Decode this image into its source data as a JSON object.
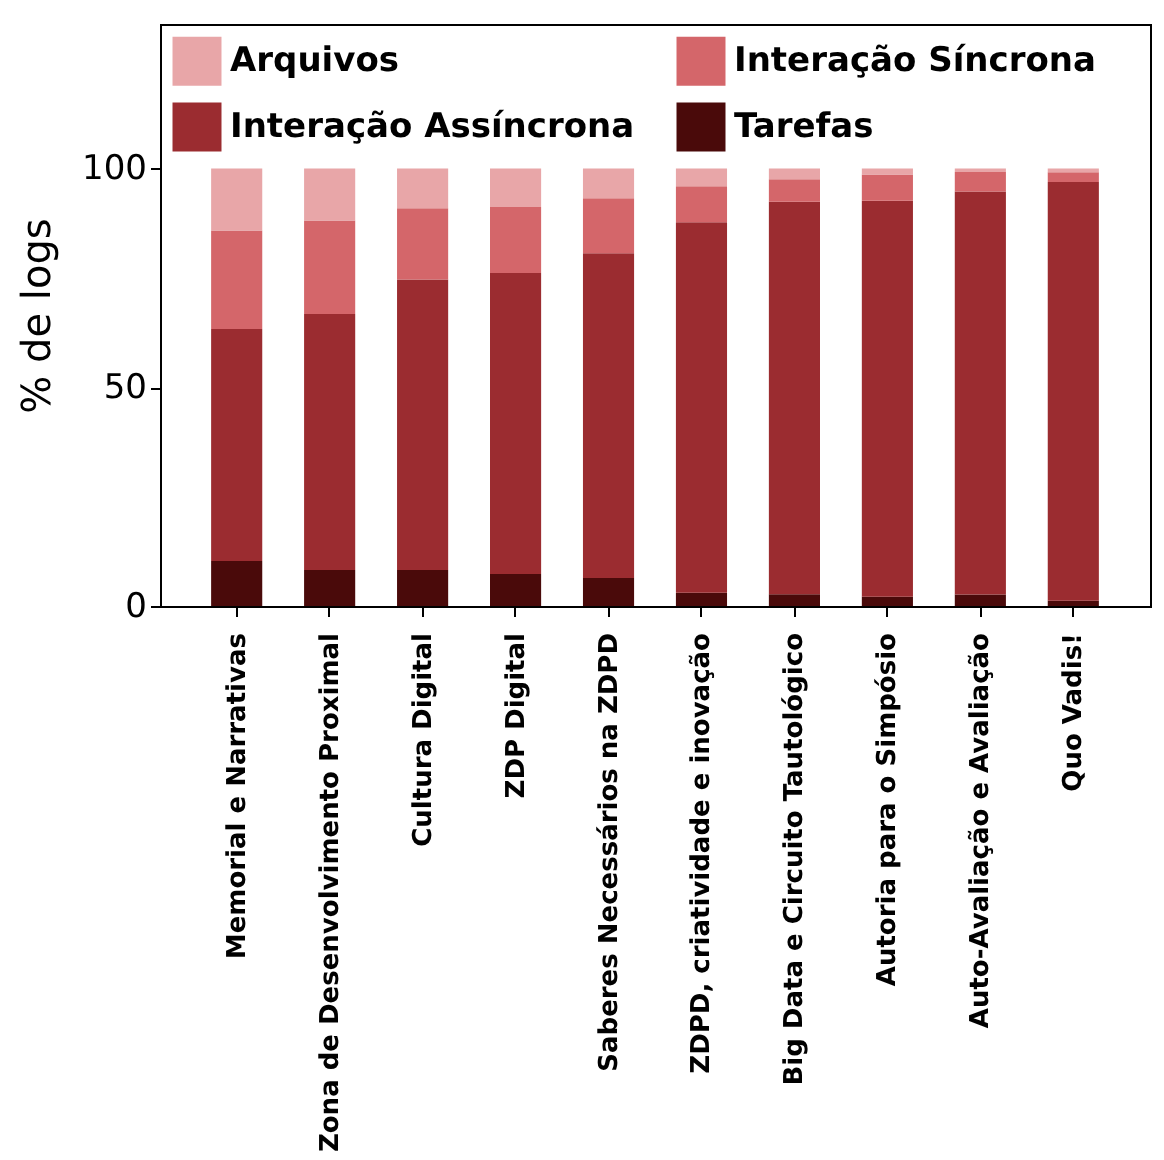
{
  "chart_data": {
    "type": "bar",
    "stacked": true,
    "ylabel": "% de logs",
    "categories": [
      "Memorial e Narrativas",
      "Zona de Desenvolvimento Proximal",
      "Cultura Digital",
      "ZDP Digital",
      "Saberes Necessários na ZDPD",
      "ZDPD, criatividade e inovação",
      "Big Data e Circuito Tautológico",
      "Autoria para o Simpósio",
      "Auto-Avaliação e Avaliação",
      "Quo Vadis!"
    ],
    "series": [
      {
        "name": "Tarefas",
        "color": "#4a0a0a",
        "values": [
          10.3,
          8.2,
          8.2,
          7.3,
          6.4,
          3.0,
          2.7,
          2.1,
          2.6,
          1.2
        ]
      },
      {
        "name": "Interação Assíncrona",
        "color": "#9b2c30",
        "values": [
          53.0,
          58.5,
          66.4,
          68.8,
          74.2,
          84.7,
          89.7,
          90.5,
          92.1,
          95.7
        ]
      },
      {
        "name": "Interação Síncrona",
        "color": "#d4666a",
        "values": [
          22.5,
          21.4,
          16.3,
          15.1,
          12.6,
          8.2,
          5.1,
          6.0,
          4.5,
          2.2
        ]
      },
      {
        "name": "Arquivos",
        "color": "#e8a6a8",
        "values": [
          14.2,
          11.9,
          9.1,
          8.8,
          6.8,
          4.1,
          2.5,
          1.4,
          0.8,
          0.9
        ]
      }
    ],
    "ylim": [
      0,
      133
    ],
    "yticks": [
      0,
      50,
      100
    ],
    "grid": false,
    "legend": "top"
  }
}
